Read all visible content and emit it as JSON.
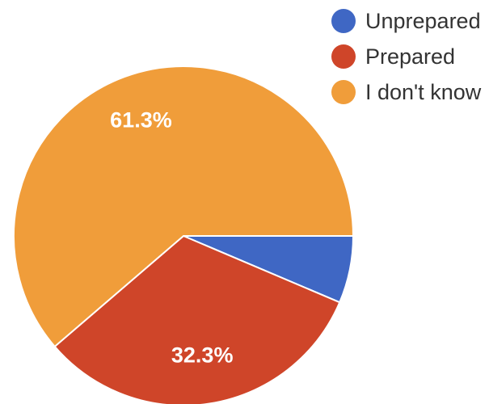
{
  "chart_data": {
    "type": "pie",
    "categories": [
      "Unprepared",
      "Prepared",
      "I don't know"
    ],
    "values": [
      6.4,
      32.3,
      61.3
    ],
    "value_labels": [
      "",
      "32.3%",
      "61.3%"
    ],
    "colors": [
      "#3f67c4",
      "#cf4529",
      "#f09d3a"
    ],
    "title": "",
    "legend_position": "top-right",
    "start_angle_note": "first slice begins at 3 o'clock, clockwise"
  }
}
